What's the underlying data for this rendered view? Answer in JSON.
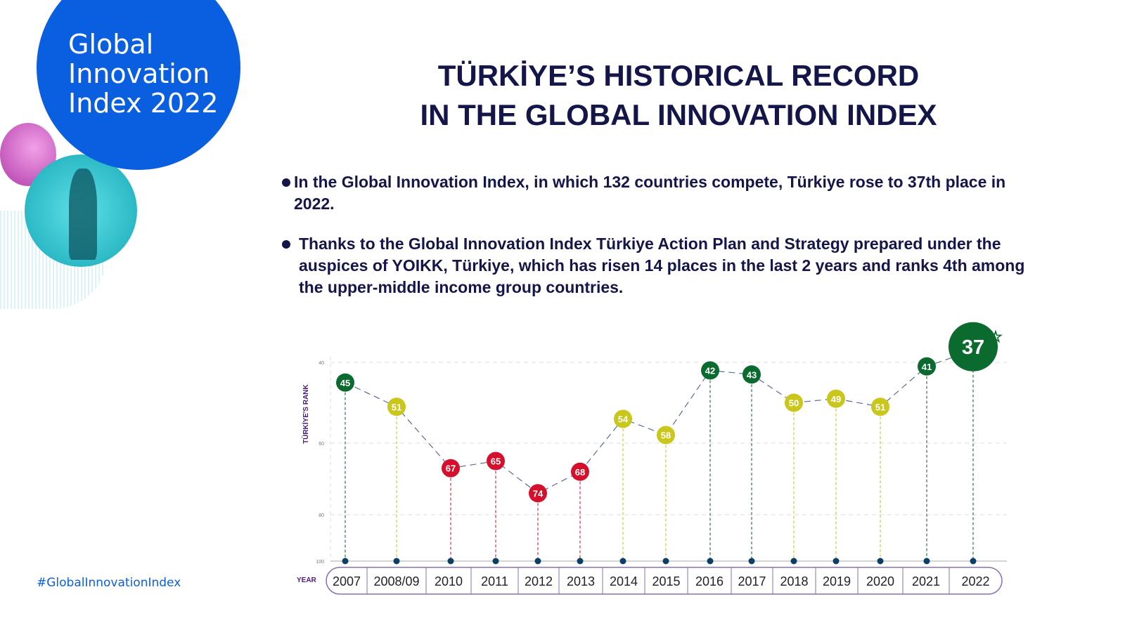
{
  "logo": {
    "lines": [
      "Global",
      "Innovation",
      "Index 2022"
    ]
  },
  "hashtag": "#GlobalInnovationIndex",
  "title": {
    "line1": "TÜRKİYE’S HISTORICAL RECORD",
    "line2": "IN THE GLOBAL INNOVATION INDEX"
  },
  "bullets": [
    "In the Global Innovation Index, in which 132 countries compete, Türkiye rose to 37th place in 2022.",
    "Thanks to the Global Innovation Index Türkiye Action Plan and Strategy prepared under the auspices of YOIKK, Türkiye, which has risen 14 places in the last 2 years and ranks 4th among the upper-middle income group countries."
  ],
  "colors": {
    "green": "#0b6b2e",
    "yellow": "#c9c71c",
    "red": "#d4102c",
    "navy": "#14164a",
    "purple": "#4a1a7a"
  },
  "chart_data": {
    "type": "line",
    "ylabel": "TÜRKİYE'S RANK",
    "xlabel": "YEAR",
    "yticks": [
      40,
      60,
      80,
      100
    ],
    "ylim": [
      40,
      100
    ],
    "y_inverted": true,
    "categories": [
      "2007",
      "2008/09",
      "2010",
      "2011",
      "2012",
      "2013",
      "2014",
      "2015",
      "2016",
      "2017",
      "2018",
      "2019",
      "2020",
      "2021",
      "2022"
    ],
    "values": [
      45,
      51,
      67,
      65,
      74,
      68,
      54,
      58,
      42,
      43,
      50,
      49,
      51,
      41,
      37
    ],
    "point_colors": [
      "green",
      "yellow",
      "red",
      "red",
      "red",
      "red",
      "yellow",
      "yellow",
      "green",
      "green",
      "yellow",
      "yellow",
      "yellow",
      "green",
      "green"
    ],
    "highlight_index": 14
  }
}
